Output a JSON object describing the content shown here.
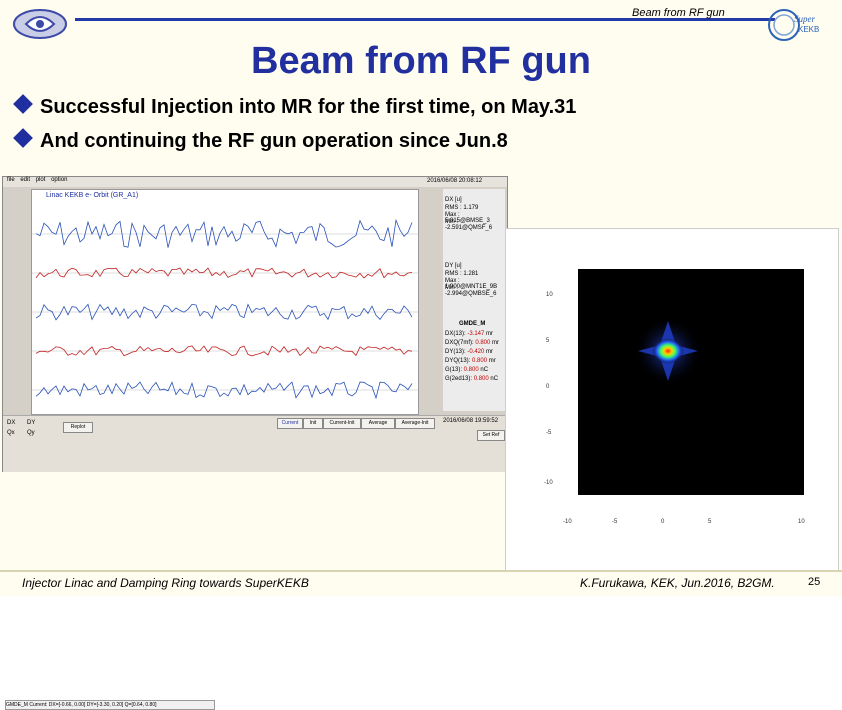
{
  "header": {
    "corner_text": "Beam from RF gun"
  },
  "title": "Beam from RF gun",
  "bullets": [
    "Successful Injection into MR for the first time, on May.31",
    "And continuing the RF gun operation since Jun.8"
  ],
  "footer": {
    "left": "Injector Linac and Damping Ring towards SuperKEKB",
    "right": "K.Furukawa, KEK, Jun.2016, B2GM.",
    "page": "25"
  },
  "logos": {
    "left": "kek-logo-icon",
    "right": "super-kekb-logo-icon"
  },
  "orbit_window": {
    "title": "Linac KEKB e- Orbit (GR_A1)",
    "menu": [
      "file",
      "edit",
      "plot",
      "option"
    ],
    "datetime_top": "2016/06/08 20:08:12",
    "stats_top": {
      "label": "DX [u]",
      "rms": "RMS : 1.179",
      "max": "Max : 5.815@BMSE_3",
      "min": "Min : -2.591@QMSF_6"
    },
    "stats_mid": {
      "label": "DY [u]",
      "rms": "RMS : 1.281",
      "max": "Max : 1.900@MNT1E_9B",
      "min": "Min : -2.994@QMBSE_6"
    },
    "gmde_label": "GMDE_M",
    "readings": [
      {
        "name": "DX(13):",
        "value": "-3.147",
        "unit": "mr"
      },
      {
        "name": "DXQ(7mf):",
        "value": "0.800",
        "unit": "mr"
      },
      {
        "name": "DY(13):",
        "value": "-0.420",
        "unit": "mr"
      },
      {
        "name": "DYQ(13):",
        "value": "0.800",
        "unit": "mr"
      },
      {
        "name": "G(13):",
        "value": "0.800",
        "unit": "nC"
      },
      {
        "name": "G(2ed13):",
        "value": "0.800",
        "unit": "nC"
      }
    ],
    "range_labels": [
      "DX",
      "DY",
      "Qx",
      "Qy"
    ],
    "buttons": [
      "Replot",
      "Current",
      "Init",
      "Current-Init",
      "Average",
      "Average-Init"
    ],
    "status_line": "GMDE_M  Current: DX=[-0.66, 0.00] DY=[-3.30, 0.20] Q=[0.64, 0.80]",
    "datetime_bottom": "2016/06/08 19:59:52",
    "set_ref": "Set Ref"
  },
  "screen": {
    "x_ticks": [
      "-10",
      "-5",
      "0",
      "5",
      "10"
    ],
    "y_ticks": [
      "10",
      "5",
      "0",
      "-5",
      "-10"
    ]
  },
  "colors": {
    "title": "#21309e",
    "bar": "#2438a8",
    "bullet": "#1f2f9e"
  }
}
